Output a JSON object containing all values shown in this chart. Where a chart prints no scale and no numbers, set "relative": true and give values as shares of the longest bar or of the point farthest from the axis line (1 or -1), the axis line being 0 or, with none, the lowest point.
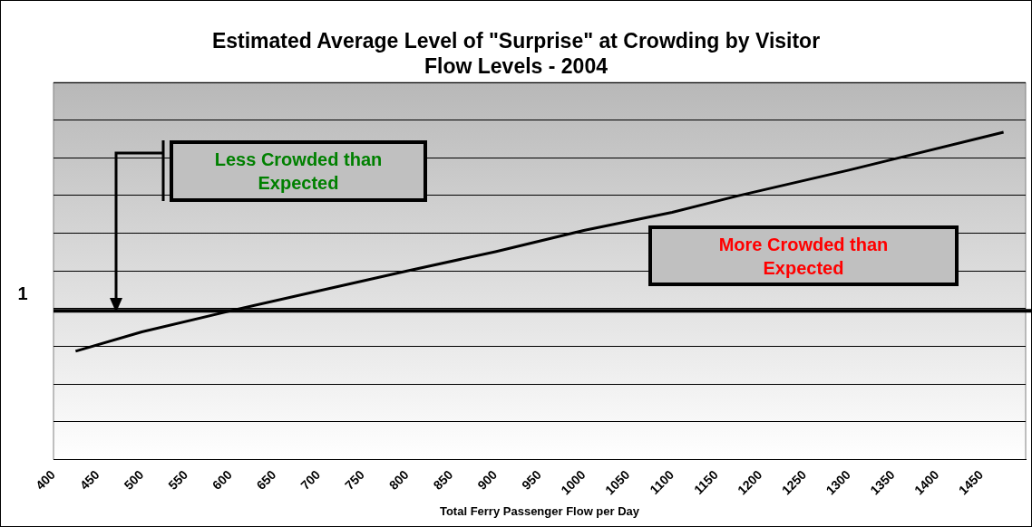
{
  "chart_data": {
    "type": "line",
    "title": "Estimated Average Level of \"Surprise\" at Crowding by Visitor Flow Levels - 2004",
    "xlabel": "Total Ferry Passenger Flow per Day",
    "relative": true,
    "x": [
      425,
      500,
      600,
      700,
      800,
      900,
      1000,
      1100,
      1175,
      1300,
      1475
    ],
    "series": [
      {
        "color": "#000000",
        "values": [
          0.331,
          0.39,
          0.454,
          0.515,
          0.576,
          0.635,
          0.7,
          0.755,
          0.806,
          0.884,
          1.0
        ]
      }
    ],
    "xlim": [
      400,
      1500
    ],
    "xticks": [
      400,
      450,
      500,
      550,
      600,
      650,
      700,
      750,
      800,
      850,
      900,
      950,
      1000,
      1050,
      1100,
      1150,
      1200,
      1250,
      1300,
      1350,
      1400,
      1450
    ],
    "ref_lines": [
      {
        "axis": "y",
        "value": 0.454,
        "color": "#000000"
      }
    ],
    "annotations": [
      "1",
      "Less Crowded than Expected",
      "More Crowded than Expected"
    ],
    "grid": "y",
    "legend": false,
    "marker": "none",
    "line_style": "solid"
  }
}
